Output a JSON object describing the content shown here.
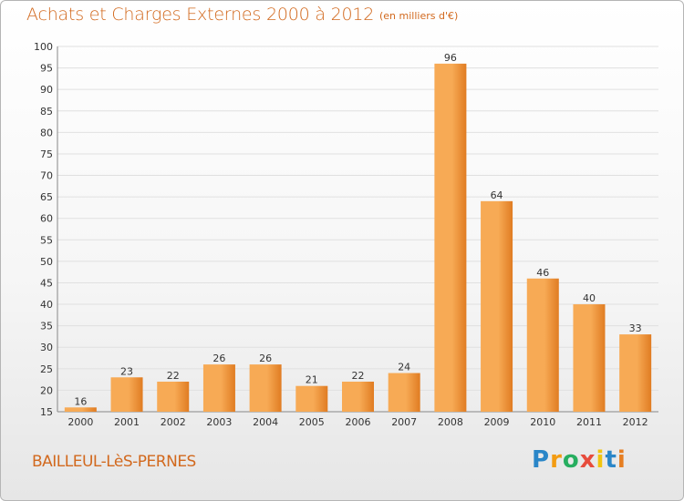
{
  "title": "Achats et Charges Externes 2000 à 2012",
  "subtitle": "(en milliers d'€)",
  "commune": "BAILLEUL-LèS-PERNES",
  "logo": {
    "letters": [
      "P",
      "r",
      "o",
      "x",
      "i",
      "t",
      "i"
    ],
    "colors": [
      "#2a86c8",
      "#f39c12",
      "#27ae60",
      "#e74c3c",
      "#f1c40f",
      "#2a86c8",
      "#e67e22"
    ]
  },
  "colors": {
    "accent": "#d2691e",
    "bar_light": "#f7aa55",
    "bar_dark": "#e07c22",
    "grid": "#e0e0e0"
  },
  "chart_data": {
    "type": "bar",
    "categories": [
      "2000",
      "2001",
      "2002",
      "2003",
      "2004",
      "2005",
      "2006",
      "2007",
      "2008",
      "2009",
      "2010",
      "2011",
      "2012"
    ],
    "values": [
      16,
      23,
      22,
      26,
      26,
      21,
      22,
      24,
      96,
      64,
      46,
      40,
      33
    ],
    "title": "Achats et Charges Externes 2000 à 2012",
    "subtitle": "(en milliers d'€)",
    "ylim": [
      15,
      100
    ],
    "yticks": [
      15,
      20,
      25,
      30,
      35,
      40,
      45,
      50,
      55,
      60,
      65,
      70,
      75,
      80,
      85,
      90,
      95,
      100
    ],
    "grid": true
  }
}
